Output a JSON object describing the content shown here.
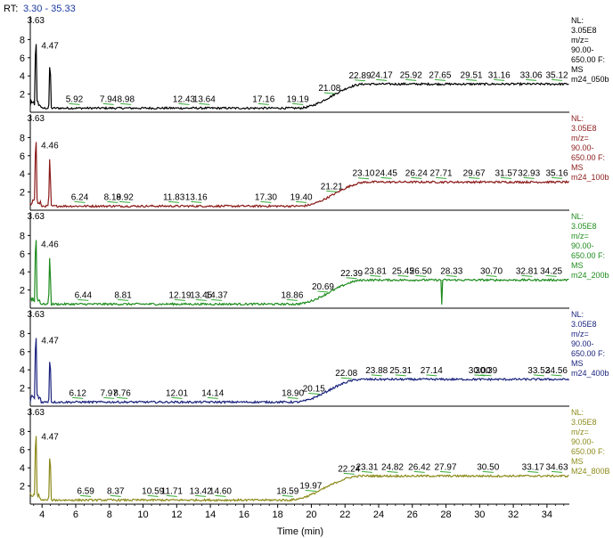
{
  "rt_label": "RT:",
  "rt_range": "3.30 - 35.33",
  "colors": {
    "rt_range": "#1a3aa0",
    "axis": "#000000",
    "ann_line": "#33aa33"
  },
  "chart_data": {
    "type": "line",
    "xlabel": "Time (min)",
    "xlim": [
      3.3,
      35.33
    ],
    "x_ticks": [
      "4",
      "6",
      "8",
      "10",
      "12",
      "14",
      "16",
      "18",
      "20",
      "22",
      "24",
      "26",
      "28",
      "30",
      "32",
      "34"
    ],
    "y_ticks": [
      "2",
      "4",
      "6",
      "8"
    ],
    "ylim": [
      0,
      10
    ],
    "panels": [
      {
        "color": "#000000",
        "info": [
          "NL:",
          "3.05E8",
          "m/z=",
          "90.00-",
          "650.00 F:",
          "MS",
          "m24_050b"
        ],
        "peak_labels": [
          "3.63",
          "4.47",
          "5.92",
          "7.94",
          "8.98",
          "12.43",
          "13.64",
          "17.16",
          "19.19",
          "21.08",
          "22.89",
          "24.17",
          "25.92",
          "27.65",
          "29.51",
          "31.16",
          "33.06",
          "35.12"
        ],
        "peaks": [
          {
            "x": 3.63,
            "y": 10
          },
          {
            "x": 4.47,
            "y": 6.6
          }
        ],
        "baseline_low": 0.45,
        "baseline_high": 3.1,
        "rise_start": 19.2,
        "rise_end": 23.2,
        "spike": null
      },
      {
        "color": "#8b1a1a",
        "info": [
          "NL:",
          "3.05E8",
          "m/z=",
          "90.00-",
          "650.00 F:",
          "MS",
          "m24_100b"
        ],
        "peak_labels": [
          "3.63",
          "4.46",
          "6.24",
          "8.19",
          "8.92",
          "11.83",
          "13.16",
          "17.30",
          "19.40",
          "21.21",
          "23.10",
          "24.45",
          "26.24",
          "27.71",
          "29.67",
          "31.57",
          "32.93",
          "35.16"
        ],
        "peaks": [
          {
            "x": 3.63,
            "y": 10
          },
          {
            "x": 4.46,
            "y": 6.4
          }
        ],
        "baseline_low": 0.45,
        "baseline_high": 3.1,
        "rise_start": 19.3,
        "rise_end": 23.4,
        "spike": null
      },
      {
        "color": "#1e8c1e",
        "info": [
          "NL:",
          "3.05E8",
          "m/z=",
          "90.00-",
          "650.00 F:",
          "MS",
          "m24_200b"
        ],
        "peak_labels": [
          "3.63",
          "4.46",
          "6.44",
          "8.81",
          "12.19",
          "13.45",
          "14.37",
          "18.86",
          "20.69",
          "22.39",
          "23.81",
          "25.45",
          "26.50",
          "28.33",
          "30.70",
          "32.81",
          "34.25"
        ],
        "peaks": [
          {
            "x": 3.63,
            "y": 10
          },
          {
            "x": 4.46,
            "y": 6.3
          }
        ],
        "baseline_low": 0.45,
        "baseline_high": 3.1,
        "rise_start": 19.0,
        "rise_end": 23.2,
        "spike": {
          "x": 27.75,
          "y": 0.4
        }
      },
      {
        "color": "#1a237e",
        "info": [
          "NL:",
          "3.05E8",
          "m/z=",
          "90.00-",
          "650.00 F:",
          "MS",
          "m24_400b"
        ],
        "peak_labels": [
          "3.63",
          "4.47",
          "6.12",
          "7.97",
          "8.76",
          "12.01",
          "14.14",
          "18.90",
          "20.15",
          "22.08",
          "23.88",
          "25.31",
          "27.14",
          "30.00",
          "30.39",
          "33.52",
          "34.56"
        ],
        "peaks": [
          {
            "x": 3.63,
            "y": 10
          },
          {
            "x": 4.47,
            "y": 6.5
          }
        ],
        "baseline_low": 0.45,
        "baseline_high": 2.95,
        "rise_start": 19.0,
        "rise_end": 23.0,
        "spike": null
      },
      {
        "color": "#8c8a1a",
        "info": [
          "NL:",
          "3.05E8",
          "m/z=",
          "90.00-",
          "650.00 F:",
          "MS",
          "M24_800B"
        ],
        "peak_labels": [
          "3.63",
          "4.47",
          "6.59",
          "8.37",
          "10.59",
          "11.71",
          "13.42",
          "14.60",
          "18.59",
          "19.97",
          "22.24",
          "23.31",
          "24.82",
          "26.42",
          "27.97",
          "30.50",
          "33.17",
          "34.63"
        ],
        "peaks": [
          {
            "x": 3.63,
            "y": 10
          },
          {
            "x": 4.47,
            "y": 6.7
          }
        ],
        "baseline_low": 0.45,
        "baseline_high": 3.1,
        "rise_start": 18.6,
        "rise_end": 23.0,
        "spike": null
      }
    ]
  }
}
